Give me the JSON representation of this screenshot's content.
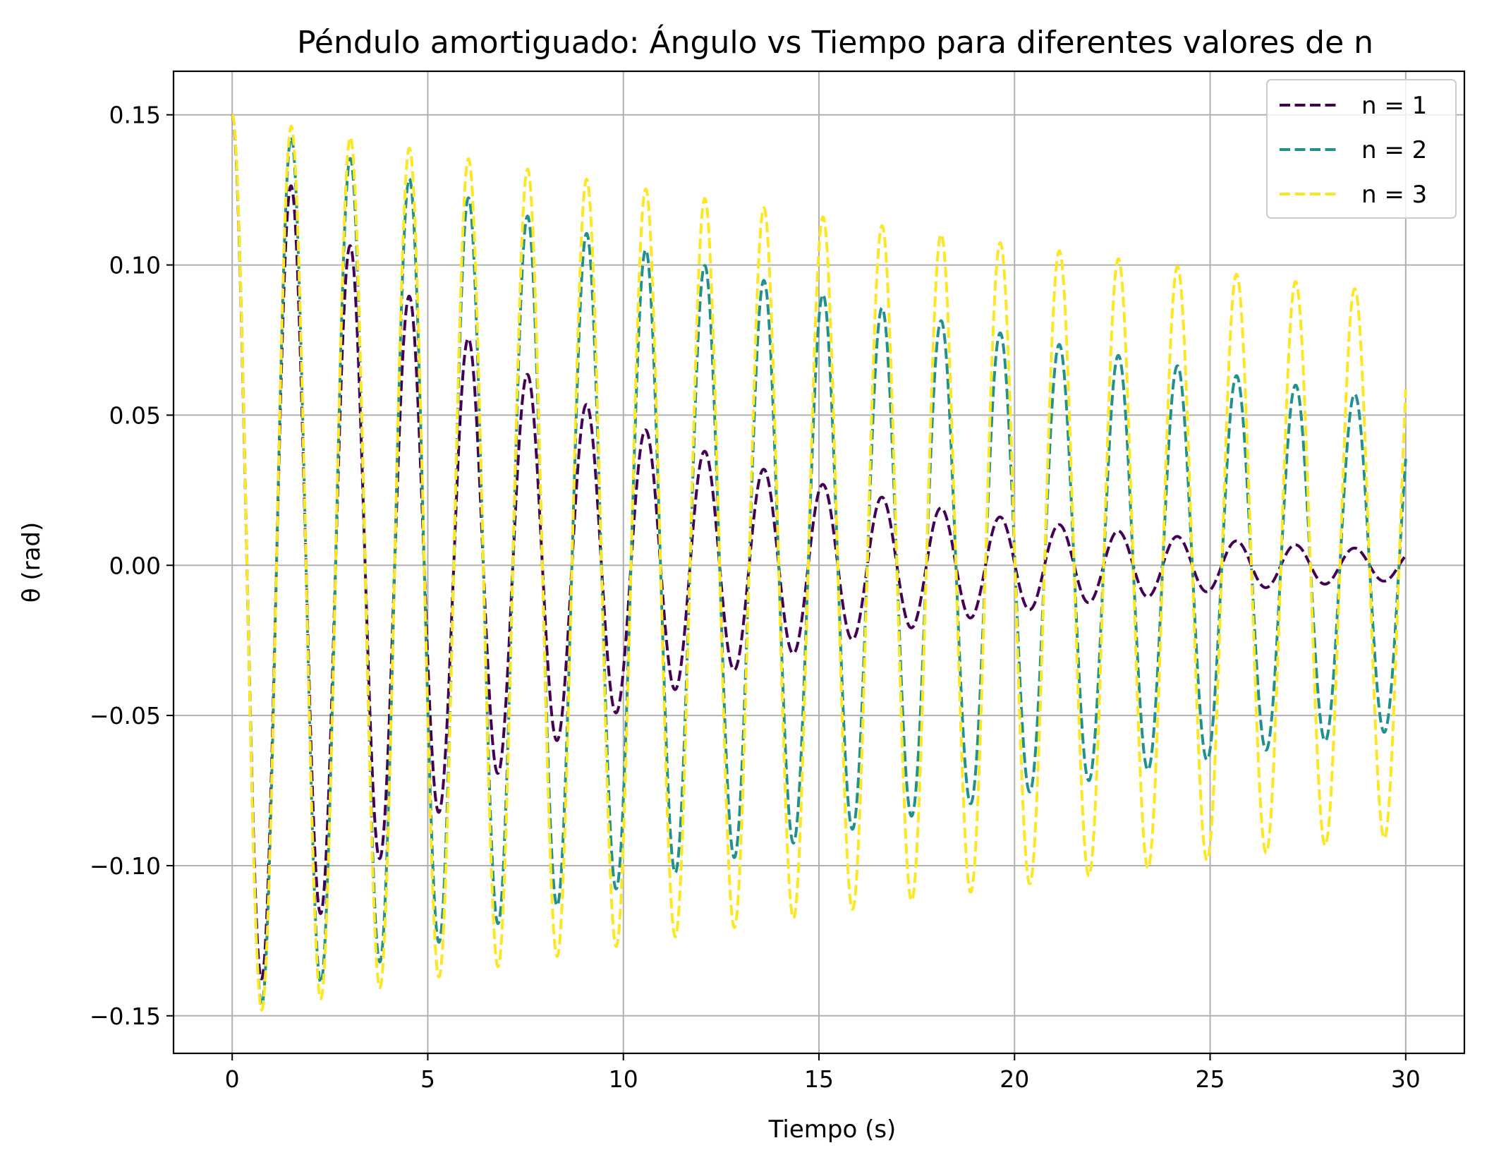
{
  "chart_data": {
    "type": "line",
    "title": "Péndulo amortiguado: Ángulo vs Tiempo para diferentes valores de n",
    "xlabel": "Tiempo (s)",
    "ylabel": "θ (rad)",
    "xlim": [
      -1.5,
      31.5
    ],
    "ylim": [
      -0.1625,
      0.1645
    ],
    "xticks": [
      0,
      5,
      10,
      15,
      20,
      25,
      30
    ],
    "xtick_labels": [
      "0",
      "5",
      "10",
      "15",
      "20",
      "25",
      "30"
    ],
    "yticks": [
      -0.15,
      -0.1,
      -0.05,
      0.0,
      0.05,
      0.1,
      0.15
    ],
    "ytick_labels": [
      "−0.15",
      "−0.10",
      "−0.05",
      "0.00",
      "0.05",
      "0.10",
      "0.15"
    ],
    "grid": true,
    "legend_position": "top-right",
    "line_style": "dashed",
    "model": "theta(t) = A0 * exp(-gamma * t) * cos(omega * t), t from 0 to 30",
    "series": [
      {
        "name": "n = 1",
        "color": "#440154",
        "A0": 0.15,
        "omega": 4.16,
        "gamma": 0.1137,
        "t_range": [
          0,
          30
        ]
      },
      {
        "name": "n = 2",
        "color": "#21918c",
        "A0": 0.15,
        "omega": 4.16,
        "gamma": 0.0337,
        "t_range": [
          0,
          30
        ]
      },
      {
        "name": "n = 3",
        "color": "#fde725",
        "A0": 0.15,
        "omega": 4.16,
        "gamma": 0.017,
        "t_range": [
          0,
          30
        ]
      }
    ]
  }
}
